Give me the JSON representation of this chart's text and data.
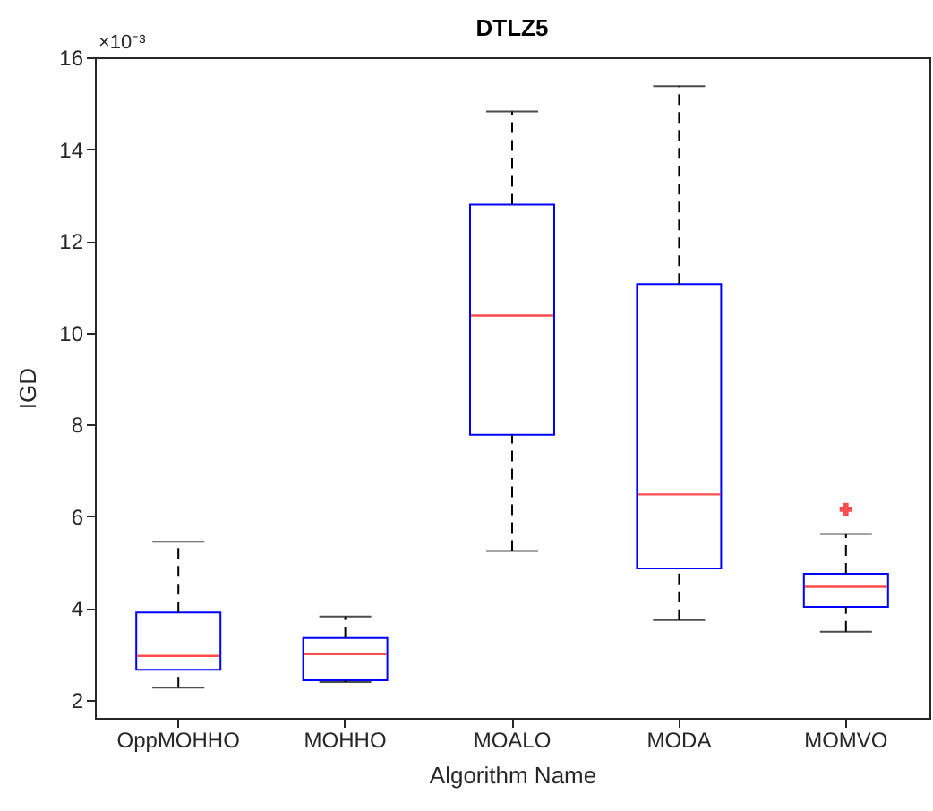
{
  "chart_data": {
    "type": "box",
    "title": "DTLZ5",
    "xlabel": "Algorithm Name",
    "ylabel": "IGD",
    "annotations": [
      "×10⁻³"
    ],
    "categories": [
      "OppMOHHO",
      "MOHHO",
      "MOALO",
      "MODA",
      "MOMVO"
    ],
    "color": "#0000ff",
    "line_style": "dashed",
    "marker": "cross",
    "grid": false,
    "ylim": [
      1.6,
      16
    ],
    "yticks": [
      2,
      4,
      6,
      8,
      10,
      12,
      14,
      16
    ],
    "boxes": [
      {
        "low": 2.26,
        "q1": 2.65,
        "median": 2.95,
        "q3": 3.9,
        "high": 5.44
      },
      {
        "low": 2.38,
        "q1": 2.42,
        "median": 2.99,
        "q3": 3.34,
        "high": 3.81
      },
      {
        "low": 5.24,
        "q1": 7.77,
        "median": 10.37,
        "q3": 12.79,
        "high": 14.82
      },
      {
        "low": 3.73,
        "q1": 4.86,
        "median": 6.47,
        "q3": 11.06,
        "high": 15.37
      },
      {
        "low": 3.48,
        "q1": 4.02,
        "median": 4.46,
        "q3": 4.74,
        "high": 5.61,
        "outliers": [
          6.15
        ]
      }
    ]
  }
}
